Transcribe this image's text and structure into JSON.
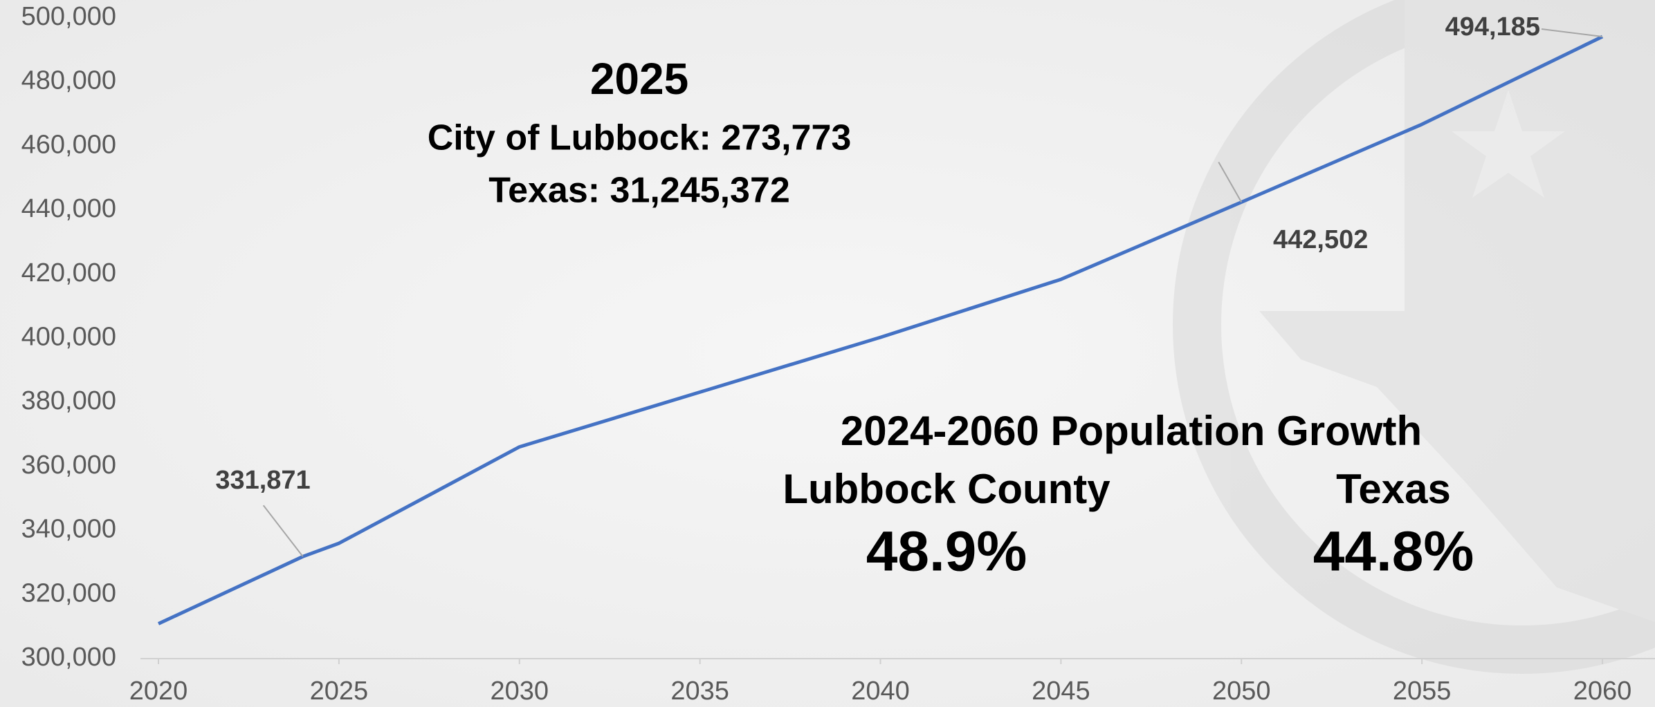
{
  "chart_data": {
    "type": "line",
    "x": [
      2020,
      2024,
      2025,
      2030,
      2035,
      2040,
      2045,
      2050,
      2055,
      2060
    ],
    "series": [
      {
        "color": "#4472c4",
        "values": [
          310900,
          331871,
          336000,
          366100,
          383200,
          400300,
          418400,
          442502,
          466800,
          494185
        ],
        "value_labels": [
          null,
          "331,871",
          null,
          null,
          null,
          null,
          null,
          "442,502",
          null,
          "494,185"
        ]
      }
    ],
    "xlim": [
      2020,
      2060
    ],
    "xticks": [
      2020,
      2025,
      2030,
      2035,
      2040,
      2045,
      2050,
      2055,
      2060
    ],
    "ylim": [
      300000,
      500000
    ],
    "yticks": [
      {
        "value": 300000,
        "label": "300,000"
      },
      {
        "value": 320000,
        "label": "320,000"
      },
      {
        "value": 340000,
        "label": "340,000"
      },
      {
        "value": 360000,
        "label": "360,000"
      },
      {
        "value": 380000,
        "label": "380,000"
      },
      {
        "value": 400000,
        "label": "400,000"
      },
      {
        "value": 420000,
        "label": "420,000"
      },
      {
        "value": 440000,
        "label": "440,000"
      },
      {
        "value": 460000,
        "label": "460,000"
      },
      {
        "value": 480000,
        "label": "480,000"
      },
      {
        "value": 500000,
        "label": "500,000"
      }
    ],
    "annotations": [
      {
        "text": "2025"
      },
      {
        "text": "City of Lubbock: 273,773"
      },
      {
        "text": "Texas: 31,245,372"
      },
      {
        "text": "2024-2060 Population Growth"
      },
      {
        "text": "Lubbock County"
      },
      {
        "text": "48.9%",
        "color": "#00b050"
      },
      {
        "text": "Texas"
      },
      {
        "text": "44.8%",
        "color": "#00b050"
      }
    ]
  }
}
